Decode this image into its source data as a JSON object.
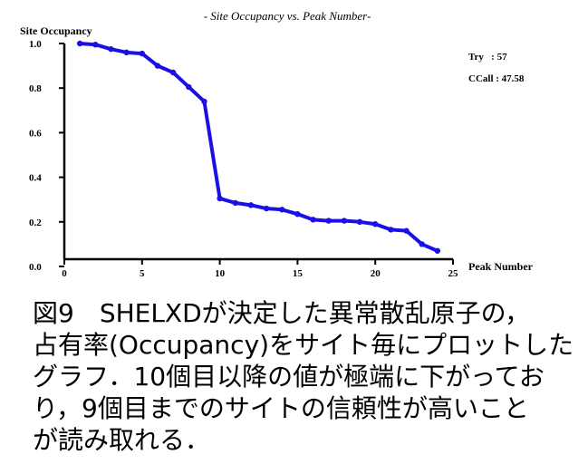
{
  "chart_data": {
    "type": "line",
    "title": "- Site Occupancy vs. Peak Number-",
    "xlabel": "Peak Number",
    "ylabel": "Site Occupancy",
    "x_ticks": [
      "0",
      "5",
      "10",
      "15",
      "20",
      "25"
    ],
    "y_ticks": [
      "0.0",
      "0.2",
      "0.4",
      "0.6",
      "0.8",
      "1.0"
    ],
    "xlim": [
      0,
      25
    ],
    "ylim": [
      0,
      1.0
    ],
    "grid": false,
    "series": [
      {
        "color": "#1a10e6",
        "x": [
          1,
          2,
          3,
          4,
          5,
          6,
          7,
          8,
          9,
          10,
          11,
          12,
          13,
          14,
          15,
          16,
          17,
          18,
          19,
          20,
          21,
          22,
          23,
          24
        ],
        "y": [
          1.0,
          0.995,
          0.975,
          0.96,
          0.955,
          0.9,
          0.87,
          0.805,
          0.74,
          0.305,
          0.285,
          0.275,
          0.26,
          0.255,
          0.235,
          0.21,
          0.205,
          0.205,
          0.2,
          0.19,
          0.165,
          0.16,
          0.1,
          0.07
        ]
      }
    ],
    "annotations": [
      {
        "key": "try",
        "text": "Try   : 57"
      },
      {
        "key": "ccall",
        "text": "CCall : 47.58"
      }
    ]
  },
  "caption": {
    "lines": [
      "図9　SHELXDが決定した異常散乱原子の，",
      "占有率(Occupancy)をサイト毎にプロットした",
      "グラフ．10個目以降の値が極端に下がってお",
      "り，9個目までのサイトの信頼性が高いこと",
      "が読み取れる．"
    ]
  }
}
